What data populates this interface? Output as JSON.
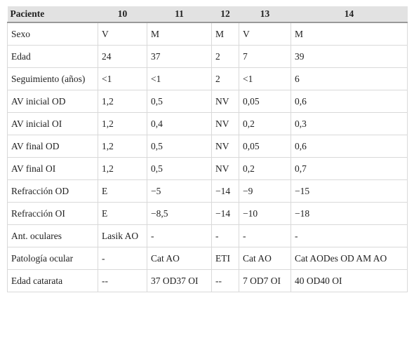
{
  "table": {
    "header": [
      "Paciente",
      "10",
      "11",
      "12",
      "13",
      "14"
    ],
    "rows": [
      [
        "Sexo",
        "V",
        "M",
        "M",
        "V",
        "M"
      ],
      [
        "Edad",
        "24",
        "37",
        "2",
        "7",
        "39"
      ],
      [
        "Seguimiento (años)",
        "<1",
        "<1",
        "2",
        "<1",
        "6"
      ],
      [
        "AV inicial OD",
        "1,2",
        "0,5",
        "NV",
        "0,05",
        "0,6"
      ],
      [
        "AV inicial OI",
        "1,2",
        "0,4",
        "NV",
        "0,2",
        "0,3"
      ],
      [
        "AV final OD",
        "1,2",
        "0,5",
        "NV",
        "0,05",
        "0,6"
      ],
      [
        "AV final OI",
        "1,2",
        "0,5",
        "NV",
        "0,2",
        "0,7"
      ],
      [
        "Refracción OD",
        "E",
        "−5",
        "−14",
        "−9",
        "−15"
      ],
      [
        "Refracción OI",
        "E",
        "−8,5",
        "−14",
        "−10",
        "−18"
      ],
      [
        "Ant. oculares",
        "Lasik AO",
        "-",
        "-",
        "-",
        "-"
      ],
      [
        "Patología ocular",
        "-",
        "Cat AO",
        "ETI",
        "Cat AO",
        "Cat AODes OD AM AO"
      ],
      [
        "Edad catarata",
        "--",
        "37 OD37 OI",
        "--",
        "7 OD7 OI",
        "40 OD40 OI"
      ]
    ]
  }
}
